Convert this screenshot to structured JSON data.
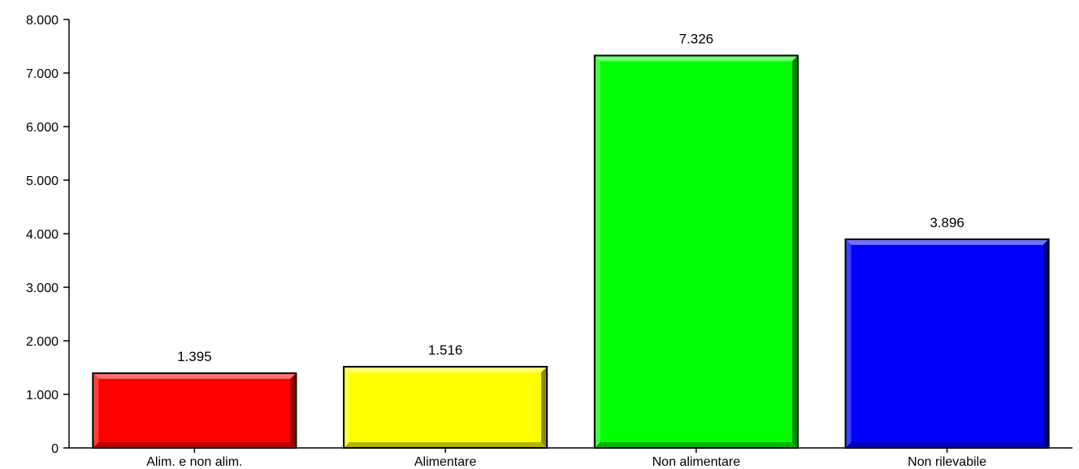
{
  "chart_data": {
    "type": "bar",
    "categories": [
      "Alim. e non alim.",
      "Alimentare",
      "Non alimentare",
      "Non rilevabile"
    ],
    "values": [
      1395,
      1516,
      7326,
      3896
    ],
    "value_labels": [
      "1.395",
      "1.516",
      "7.326",
      "3.896"
    ],
    "colors": [
      "#ff0000",
      "#ffff00",
      "#00ff00",
      "#0000ff"
    ],
    "ylim": [
      0,
      8000
    ],
    "yticks": [
      0,
      1000,
      2000,
      3000,
      4000,
      5000,
      6000,
      7000,
      8000
    ],
    "ytick_labels": [
      "0",
      "1.000",
      "2.000",
      "3.000",
      "4.000",
      "5.000",
      "6.000",
      "7.000",
      "8.000"
    ],
    "title": "",
    "xlabel": "",
    "ylabel": "",
    "grid": false,
    "legend": "none",
    "bar_style": "bevel-3d"
  }
}
